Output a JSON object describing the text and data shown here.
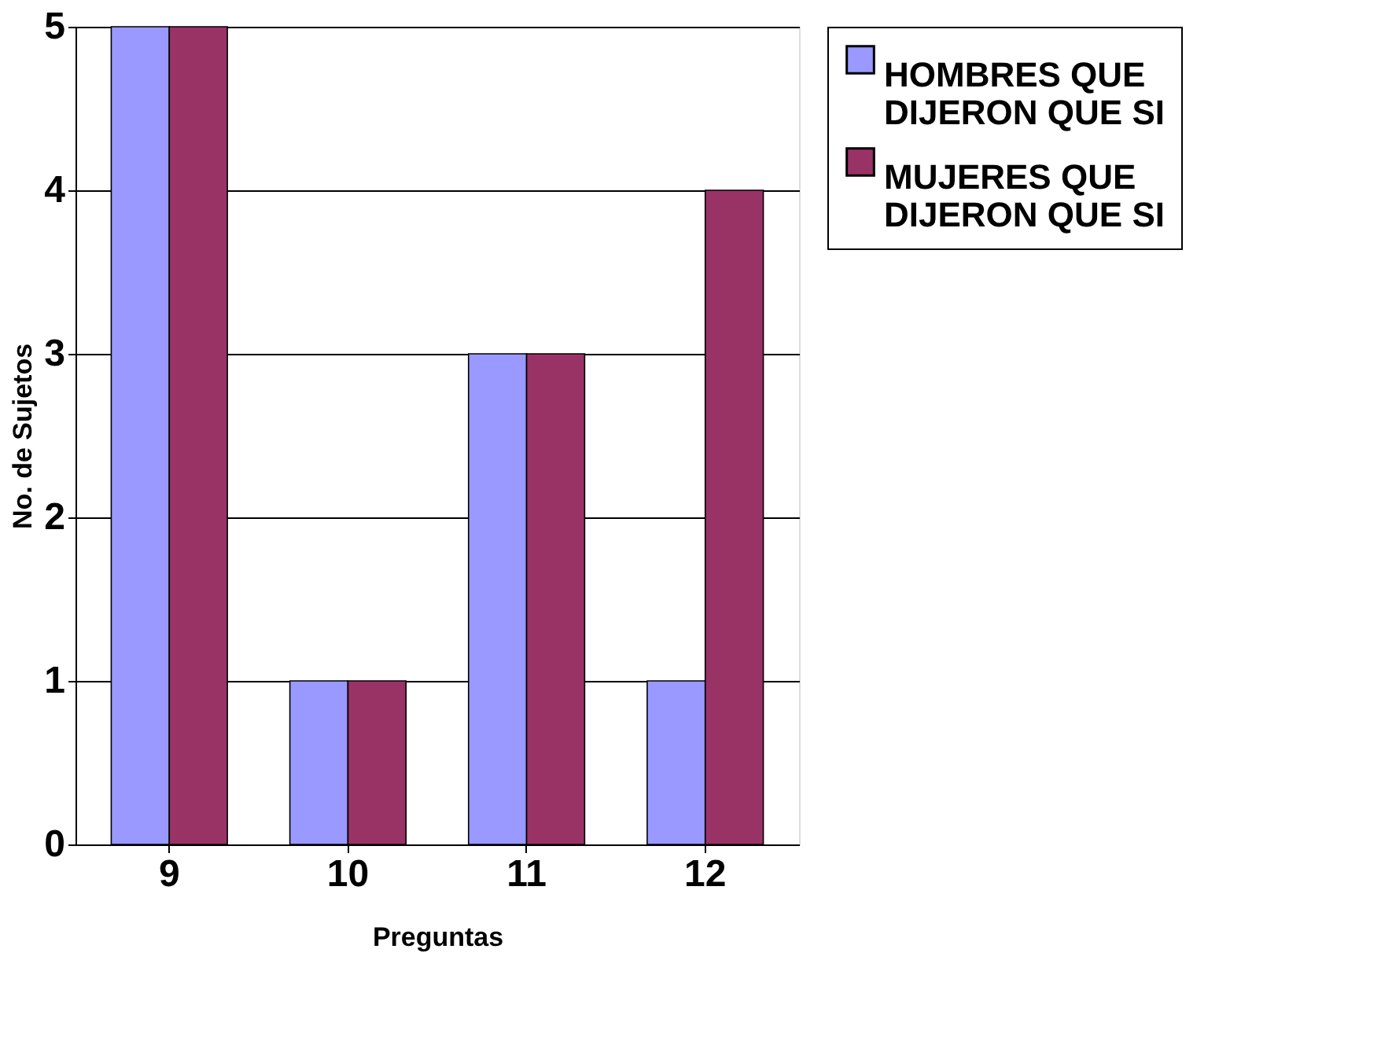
{
  "chart_data": {
    "type": "bar",
    "xlabel": "Preguntas",
    "ylabel": "No. de Sujetos",
    "categories": [
      "9",
      "10",
      "11",
      "12"
    ],
    "series": [
      {
        "name": "HOMBRES QUE DIJERON QUE SI",
        "color": "#9999ff",
        "values": [
          5,
          1,
          3,
          1
        ]
      },
      {
        "name": "MUJERES QUE DIJERON QUE SI",
        "color": "#993366",
        "values": [
          5,
          1,
          3,
          4
        ]
      }
    ],
    "ylim": [
      0,
      5
    ],
    "yticks": [
      0,
      1,
      2,
      3,
      4,
      5
    ],
    "grid": "y",
    "legend": "right"
  }
}
